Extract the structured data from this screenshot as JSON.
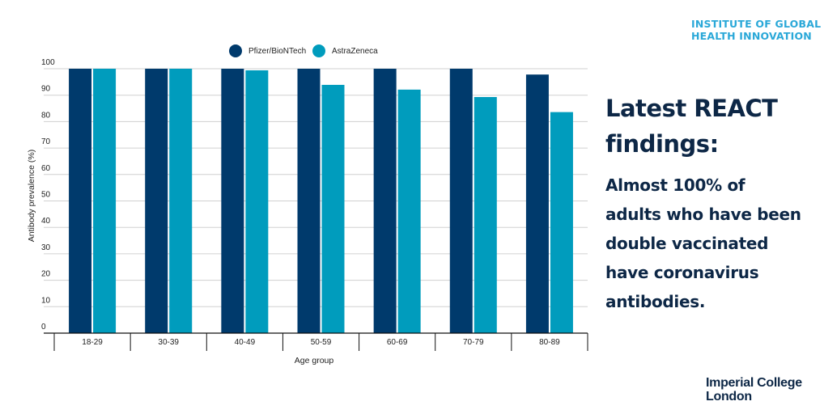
{
  "brand": {
    "text": "INSTITUTE OF GLOBAL\nHEALTH INNOVATION",
    "color": "#2aa8d8"
  },
  "headline": "Latest REACT\nfindings:",
  "body": "Almost 100% of\nadults who have been\ndouble vaccinated\nhave coronavirus\nantibodies.",
  "logo": "Imperial College\nLondon",
  "chart_data": {
    "type": "bar",
    "title": "",
    "xlabel": "Age group",
    "ylabel": "Antibody prevalence (%)",
    "ylim": [
      0,
      100
    ],
    "yticks": [
      0,
      10,
      20,
      30,
      40,
      50,
      60,
      70,
      80,
      90,
      100
    ],
    "categories": [
      "18-29",
      "30-39",
      "40-49",
      "50-59",
      "60-69",
      "70-79",
      "80-89"
    ],
    "series": [
      {
        "name": "Pfizer/BioNTech",
        "color": "#003a6c",
        "values": [
          100,
          100,
          100,
          100,
          100,
          100,
          97.8
        ]
      },
      {
        "name": "AstraZeneca",
        "color": "#009cbd",
        "values": [
          100,
          100,
          99.4,
          93.9,
          92.1,
          89.3,
          83.6
        ]
      }
    ],
    "legend_position": "top",
    "grid": true
  }
}
